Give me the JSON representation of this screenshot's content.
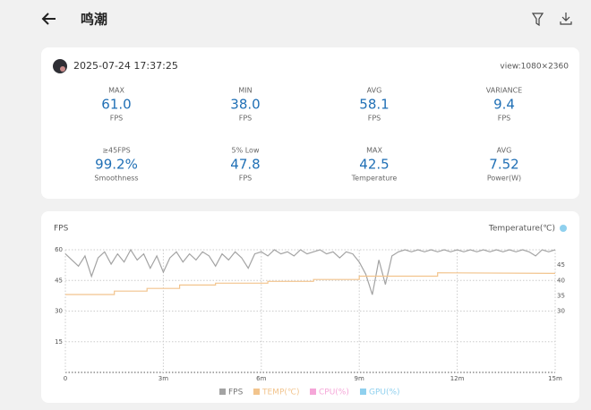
{
  "header": {
    "title": "鸣潮"
  },
  "session": {
    "datetime": "2025-07-24 17:37:25",
    "view": "view:1080×2360"
  },
  "stats": [
    {
      "label": "MAX",
      "value": "61.0",
      "unit": "FPS"
    },
    {
      "label": "MIN",
      "value": "38.0",
      "unit": "FPS"
    },
    {
      "label": "AVG",
      "value": "58.1",
      "unit": "FPS"
    },
    {
      "label": "VARIANCE",
      "value": "9.4",
      "unit": "FPS"
    },
    {
      "label": "≥45FPS",
      "value": "99.2%",
      "unit": "Smoothness"
    },
    {
      "label": "5% Low",
      "value": "47.8",
      "unit": "FPS"
    },
    {
      "label": "MAX",
      "value": "42.5",
      "unit": "Temperature"
    },
    {
      "label": "AVG",
      "value": "7.52",
      "unit": "Power(W)"
    }
  ],
  "chart_data": {
    "type": "line",
    "ylabel": "FPS",
    "y2label": "Temperature(℃)",
    "xlim": [
      0,
      15
    ],
    "xticks": [
      0,
      {
        "value": 3,
        "label": "3m"
      },
      {
        "value": 6,
        "label": "6m"
      },
      {
        "value": 9,
        "label": "9m"
      },
      {
        "value": 12,
        "label": "12m"
      },
      {
        "value": 15,
        "label": "15m"
      }
    ],
    "ylim": [
      0,
      60
    ],
    "yticks": [
      15,
      30,
      45,
      60
    ],
    "y2lim": [
      10,
      50
    ],
    "y2ticks": [
      30,
      35,
      40,
      45
    ],
    "grid": true,
    "series": [
      {
        "name": "FPS",
        "color": "#a3a3a3",
        "x": [
          0,
          0.2,
          0.4,
          0.6,
          0.8,
          1,
          1.2,
          1.4,
          1.6,
          1.8,
          2,
          2.2,
          2.4,
          2.6,
          2.8,
          3,
          3.2,
          3.4,
          3.6,
          3.8,
          4,
          4.2,
          4.4,
          4.6,
          4.8,
          5,
          5.2,
          5.4,
          5.6,
          5.8,
          6,
          6.2,
          6.4,
          6.6,
          6.8,
          7,
          7.2,
          7.4,
          7.6,
          7.8,
          8,
          8.2,
          8.4,
          8.6,
          8.8,
          9,
          9.2,
          9.4,
          9.6,
          9.8,
          10,
          10.2,
          10.4,
          10.6,
          10.8,
          11,
          11.2,
          11.4,
          11.6,
          11.8,
          12,
          12.2,
          12.4,
          12.6,
          12.8,
          13,
          13.2,
          13.4,
          13.6,
          13.8,
          14,
          14.2,
          14.4,
          14.6,
          14.8,
          15
        ],
        "values": [
          58,
          55,
          52,
          57,
          47,
          56,
          59,
          53,
          58,
          54,
          60,
          55,
          58,
          51,
          57,
          49,
          56,
          59,
          54,
          58,
          55,
          59,
          57,
          52,
          58,
          55,
          59,
          56,
          51,
          58,
          59,
          57,
          60,
          58,
          59,
          57,
          60,
          58,
          59,
          60,
          58,
          59,
          56,
          59,
          58,
          54,
          48,
          38,
          55,
          43,
          57,
          59,
          60,
          59,
          60,
          59,
          60,
          59,
          60,
          59,
          60,
          59,
          60,
          59,
          60,
          59,
          60,
          59,
          60,
          59,
          60,
          59,
          57,
          60,
          59,
          60
        ]
      },
      {
        "name": "TEMP(℃)",
        "color": "#f2c48d",
        "axis": "y2",
        "x": [
          0,
          1.5,
          1.5,
          2.5,
          2.5,
          3.5,
          3.5,
          4.6,
          4.6,
          6.2,
          6.2,
          7.6,
          7.6,
          9,
          9,
          11.4,
          11.4,
          15
        ],
        "values": [
          35.4,
          35.4,
          36.5,
          36.5,
          37.4,
          37.4,
          38.5,
          38.5,
          39.1,
          39.1,
          39.7,
          39.7,
          40.3,
          40.3,
          41.4,
          41.4,
          42.5,
          42.3
        ]
      },
      {
        "name": "CPU(%)",
        "color": "#f5a6d8",
        "x": [],
        "values": []
      },
      {
        "name": "GPU(%)",
        "color": "#8fd0ee",
        "x": [],
        "values": []
      }
    ]
  }
}
